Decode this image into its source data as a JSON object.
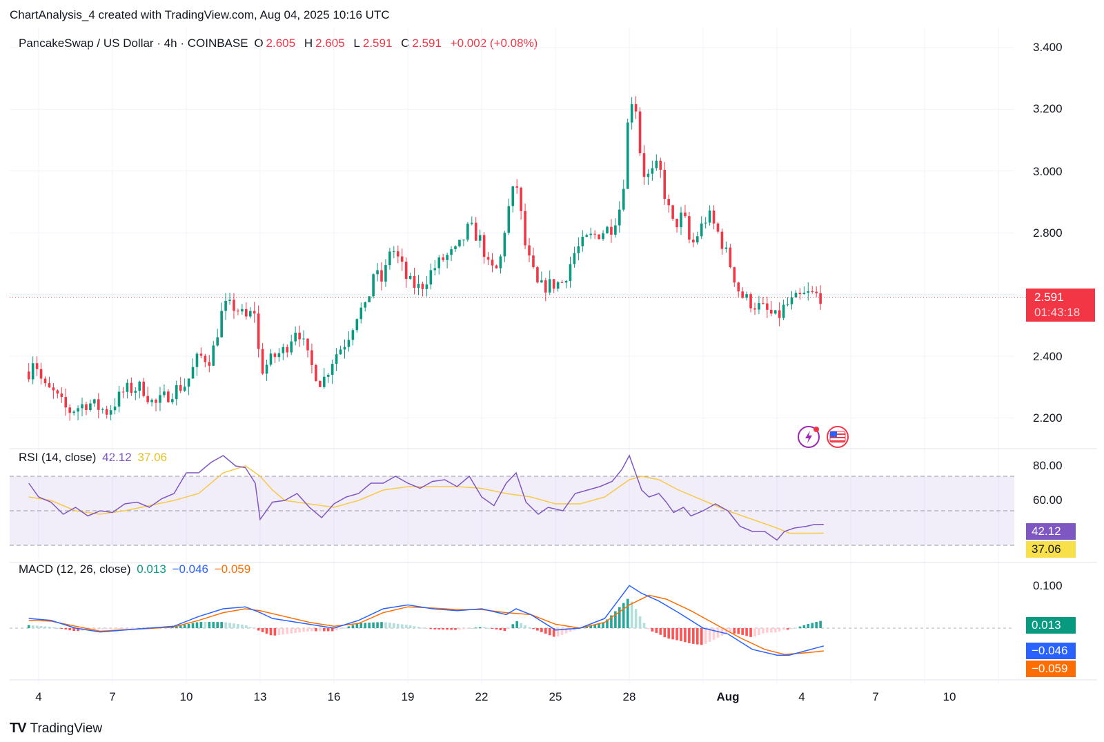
{
  "header": {
    "created_note": "ChartAnalysis_4 created with TradingView.com, Aug 04, 2025 10:16 UTC"
  },
  "main": {
    "symbol": "PancakeSwap / US Dollar · 4h · COINBASE",
    "o_label": "O",
    "o_value": "2.605",
    "h_label": "H",
    "h_value": "2.605",
    "l_label": "L",
    "l_value": "2.591",
    "c_label": "C",
    "c_value": "2.591",
    "change": "+0.002 (+0.08%)",
    "price_axis": [
      "3.400",
      "3.200",
      "3.000",
      "2.800",
      "2.400",
      "2.200"
    ],
    "last_price": "2.591",
    "countdown": "01:43:18"
  },
  "rsi": {
    "label": "RSI (14, close)",
    "value": "42.12",
    "ma_value": "37.06",
    "axis": [
      "80.00",
      "60.00"
    ]
  },
  "macd": {
    "label": "MACD (12, 26, close)",
    "hist_value": "0.013",
    "macd_value": "−0.046",
    "signal_value": "−0.059",
    "axis": [
      "0.100"
    ]
  },
  "x_axis": [
    "4",
    "7",
    "10",
    "13",
    "16",
    "19",
    "22",
    "25",
    "28",
    "Aug",
    "4",
    "7",
    "10"
  ],
  "footer": {
    "brand": "TradingView"
  },
  "colors": {
    "up": "#089981",
    "down": "#f23645",
    "rsi": "#7e57c2",
    "rsi_ma": "#f7c948",
    "macd": "#2962ff",
    "signal": "#ff6d00"
  },
  "chart_data": [
    {
      "type": "candlestick",
      "title": "PancakeSwap / US Dollar · 4h · COINBASE",
      "ylim": [
        2.1,
        3.45
      ],
      "x_range_days": [
        3.6,
        42.8
      ],
      "close_anchors": [
        [
          3.6,
          2.35
        ],
        [
          3.8,
          2.4
        ],
        [
          4.2,
          2.3
        ],
        [
          4.6,
          2.28
        ],
        [
          5.2,
          2.22
        ],
        [
          6.0,
          2.25
        ],
        [
          6.8,
          2.22
        ],
        [
          7.5,
          2.29
        ],
        [
          8.2,
          2.3
        ],
        [
          8.7,
          2.24
        ],
        [
          9.5,
          2.29
        ],
        [
          10.0,
          2.31
        ],
        [
          10.5,
          2.4
        ],
        [
          11.0,
          2.39
        ],
        [
          11.5,
          2.56
        ],
        [
          12.0,
          2.56
        ],
        [
          12.4,
          2.52
        ],
        [
          12.8,
          2.55
        ],
        [
          13.0,
          2.35
        ],
        [
          13.6,
          2.4
        ],
        [
          14.0,
          2.42
        ],
        [
          14.5,
          2.5
        ],
        [
          15.0,
          2.38
        ],
        [
          15.5,
          2.31
        ],
        [
          16.0,
          2.4
        ],
        [
          16.5,
          2.45
        ],
        [
          17.0,
          2.55
        ],
        [
          17.3,
          2.55
        ],
        [
          17.6,
          2.67
        ],
        [
          18.0,
          2.64
        ],
        [
          18.3,
          2.76
        ],
        [
          18.7,
          2.7
        ],
        [
          19.0,
          2.64
        ],
        [
          19.5,
          2.62
        ],
        [
          20.0,
          2.68
        ],
        [
          20.5,
          2.72
        ],
        [
          21.0,
          2.74
        ],
        [
          21.5,
          2.82
        ],
        [
          22.0,
          2.77
        ],
        [
          22.3,
          2.68
        ],
        [
          22.7,
          2.68
        ],
        [
          23.0,
          2.85
        ],
        [
          23.4,
          2.97
        ],
        [
          23.8,
          2.74
        ],
        [
          24.3,
          2.62
        ],
        [
          24.7,
          2.63
        ],
        [
          25.3,
          2.64
        ],
        [
          25.8,
          2.74
        ],
        [
          26.3,
          2.78
        ],
        [
          26.8,
          2.8
        ],
        [
          27.3,
          2.82
        ],
        [
          27.7,
          2.9
        ],
        [
          27.9,
          3.1
        ],
        [
          28.0,
          3.25
        ],
        [
          28.3,
          3.2
        ],
        [
          28.5,
          3.0
        ],
        [
          28.8,
          2.98
        ],
        [
          29.2,
          3.02
        ],
        [
          29.5,
          2.9
        ],
        [
          29.8,
          2.82
        ],
        [
          30.2,
          2.86
        ],
        [
          30.5,
          2.75
        ],
        [
          30.8,
          2.8
        ],
        [
          31.2,
          2.86
        ],
        [
          31.6,
          2.8
        ],
        [
          32.0,
          2.72
        ],
        [
          32.5,
          2.6
        ],
        [
          33.0,
          2.57
        ],
        [
          33.5,
          2.55
        ],
        [
          34.0,
          2.52
        ],
        [
          34.3,
          2.56
        ],
        [
          34.7,
          2.58
        ],
        [
          35.2,
          2.6
        ],
        [
          35.5,
          2.6
        ],
        [
          35.9,
          2.59
        ]
      ],
      "last_close": 2.591
    },
    {
      "type": "line",
      "title": "RSI (14, close)",
      "ylim": [
        28,
        86
      ],
      "bands": [
        30,
        50,
        70
      ],
      "series": [
        {
          "name": "RSI",
          "points": [
            [
              3.6,
              66
            ],
            [
              4.0,
              58
            ],
            [
              4.5,
              55
            ],
            [
              5.0,
              48
            ],
            [
              5.5,
              52
            ],
            [
              6.0,
              47
            ],
            [
              6.5,
              50
            ],
            [
              7.0,
              49
            ],
            [
              7.5,
              54
            ],
            [
              8.0,
              55
            ],
            [
              8.5,
              52
            ],
            [
              9.0,
              57
            ],
            [
              9.5,
              60
            ],
            [
              10.0,
              72
            ],
            [
              10.5,
              72
            ],
            [
              11.0,
              78
            ],
            [
              11.5,
              82
            ],
            [
              12.0,
              76
            ],
            [
              12.4,
              75
            ],
            [
              12.8,
              66
            ],
            [
              13.0,
              45
            ],
            [
              13.5,
              55
            ],
            [
              14.0,
              56
            ],
            [
              14.5,
              60
            ],
            [
              15.0,
              52
            ],
            [
              15.5,
              46
            ],
            [
              16.0,
              54
            ],
            [
              16.5,
              58
            ],
            [
              17.0,
              60
            ],
            [
              17.5,
              66
            ],
            [
              18.0,
              66
            ],
            [
              18.5,
              70
            ],
            [
              19.0,
              66
            ],
            [
              19.5,
              63
            ],
            [
              20.0,
              67
            ],
            [
              20.5,
              68
            ],
            [
              21.0,
              64
            ],
            [
              21.5,
              70
            ],
            [
              22.0,
              58
            ],
            [
              22.5,
              53
            ],
            [
              23.0,
              66
            ],
            [
              23.4,
              72
            ],
            [
              23.8,
              55
            ],
            [
              24.3,
              48
            ],
            [
              24.7,
              52
            ],
            [
              25.3,
              50
            ],
            [
              25.8,
              60
            ],
            [
              26.3,
              62
            ],
            [
              26.8,
              64
            ],
            [
              27.3,
              67
            ],
            [
              27.7,
              74
            ],
            [
              28.0,
              82
            ],
            [
              28.5,
              62
            ],
            [
              28.8,
              58
            ],
            [
              29.2,
              60
            ],
            [
              29.5,
              55
            ],
            [
              29.8,
              49
            ],
            [
              30.2,
              52
            ],
            [
              30.5,
              47
            ],
            [
              31.0,
              50
            ],
            [
              31.5,
              54
            ],
            [
              32.0,
              50
            ],
            [
              32.5,
              41
            ],
            [
              33.0,
              38
            ],
            [
              33.5,
              38
            ],
            [
              34.0,
              33
            ],
            [
              34.3,
              38
            ],
            [
              34.7,
              40
            ],
            [
              35.2,
              41
            ],
            [
              35.5,
              42
            ],
            [
              35.9,
              42.12
            ]
          ]
        },
        {
          "name": "RSI-based MA",
          "points": [
            [
              3.6,
              58
            ],
            [
              4.5,
              56
            ],
            [
              5.5,
              50
            ],
            [
              6.5,
              48
            ],
            [
              7.5,
              50
            ],
            [
              8.5,
              53
            ],
            [
              9.5,
              56
            ],
            [
              10.5,
              60
            ],
            [
              11.5,
              72
            ],
            [
              12.4,
              76
            ],
            [
              13.0,
              70
            ],
            [
              13.5,
              62
            ],
            [
              14.0,
              56
            ],
            [
              15.0,
              54
            ],
            [
              16.0,
              52
            ],
            [
              17.0,
              56
            ],
            [
              18.0,
              62
            ],
            [
              19.0,
              64
            ],
            [
              20.0,
              64
            ],
            [
              21.0,
              64
            ],
            [
              22.0,
              63
            ],
            [
              23.0,
              60
            ],
            [
              24.0,
              58
            ],
            [
              25.0,
              54
            ],
            [
              26.0,
              54
            ],
            [
              27.0,
              58
            ],
            [
              28.0,
              68
            ],
            [
              28.5,
              70
            ],
            [
              29.2,
              68
            ],
            [
              30.0,
              62
            ],
            [
              31.0,
              56
            ],
            [
              32.0,
              50
            ],
            [
              33.0,
              45
            ],
            [
              34.0,
              40
            ],
            [
              34.5,
              37
            ],
            [
              35.2,
              37
            ],
            [
              35.9,
              37.06
            ]
          ]
        }
      ]
    },
    {
      "type": "line",
      "title": "MACD (12, 26, close)",
      "ylim": [
        -0.085,
        0.13
      ],
      "series": [
        {
          "name": "MACD",
          "points": [
            [
              3.6,
              0.025
            ],
            [
              4.5,
              0.02
            ],
            [
              5.5,
              0.0
            ],
            [
              6.5,
              -0.01
            ],
            [
              7.5,
              -0.005
            ],
            [
              8.5,
              0.0
            ],
            [
              9.5,
              0.005
            ],
            [
              10.5,
              0.03
            ],
            [
              11.5,
              0.05
            ],
            [
              12.4,
              0.055
            ],
            [
              13.0,
              0.04
            ],
            [
              13.5,
              0.025
            ],
            [
              14.5,
              0.015
            ],
            [
              15.5,
              0.005
            ],
            [
              16.0,
              0.0
            ],
            [
              17.0,
              0.02
            ],
            [
              18.0,
              0.05
            ],
            [
              19.0,
              0.06
            ],
            [
              20.0,
              0.05
            ],
            [
              21.0,
              0.045
            ],
            [
              22.0,
              0.05
            ],
            [
              23.0,
              0.035
            ],
            [
              23.4,
              0.05
            ],
            [
              24.0,
              0.035
            ],
            [
              25.0,
              -0.005
            ],
            [
              26.0,
              0.0
            ],
            [
              27.0,
              0.025
            ],
            [
              28.0,
              0.11
            ],
            [
              28.5,
              0.09
            ],
            [
              29.2,
              0.07
            ],
            [
              30.0,
              0.04
            ],
            [
              31.0,
              0.0
            ],
            [
              32.0,
              -0.015
            ],
            [
              33.0,
              -0.055
            ],
            [
              34.0,
              -0.07
            ],
            [
              34.5,
              -0.07
            ],
            [
              35.2,
              -0.058
            ],
            [
              35.9,
              -0.046
            ]
          ]
        },
        {
          "name": "Signal",
          "points": [
            [
              3.6,
              0.02
            ],
            [
              4.5,
              0.018
            ],
            [
              5.5,
              0.005
            ],
            [
              6.5,
              -0.008
            ],
            [
              7.5,
              -0.004
            ],
            [
              8.5,
              -0.001
            ],
            [
              9.5,
              0.003
            ],
            [
              10.5,
              0.02
            ],
            [
              11.5,
              0.04
            ],
            [
              12.4,
              0.05
            ],
            [
              13.0,
              0.045
            ],
            [
              14.0,
              0.03
            ],
            [
              15.0,
              0.015
            ],
            [
              16.0,
              0.005
            ],
            [
              17.0,
              0.012
            ],
            [
              18.0,
              0.04
            ],
            [
              19.0,
              0.055
            ],
            [
              20.0,
              0.052
            ],
            [
              21.0,
              0.048
            ],
            [
              22.0,
              0.048
            ],
            [
              23.0,
              0.04
            ],
            [
              24.0,
              0.035
            ],
            [
              25.0,
              0.01
            ],
            [
              26.0,
              0.0
            ],
            [
              27.0,
              0.015
            ],
            [
              28.0,
              0.06
            ],
            [
              28.8,
              0.085
            ],
            [
              29.5,
              0.075
            ],
            [
              30.5,
              0.045
            ],
            [
              31.5,
              0.01
            ],
            [
              32.5,
              -0.025
            ],
            [
              33.5,
              -0.055
            ],
            [
              34.3,
              -0.068
            ],
            [
              35.2,
              -0.064
            ],
            [
              35.9,
              -0.059
            ]
          ]
        }
      ],
      "hist_last": 0.013
    }
  ]
}
